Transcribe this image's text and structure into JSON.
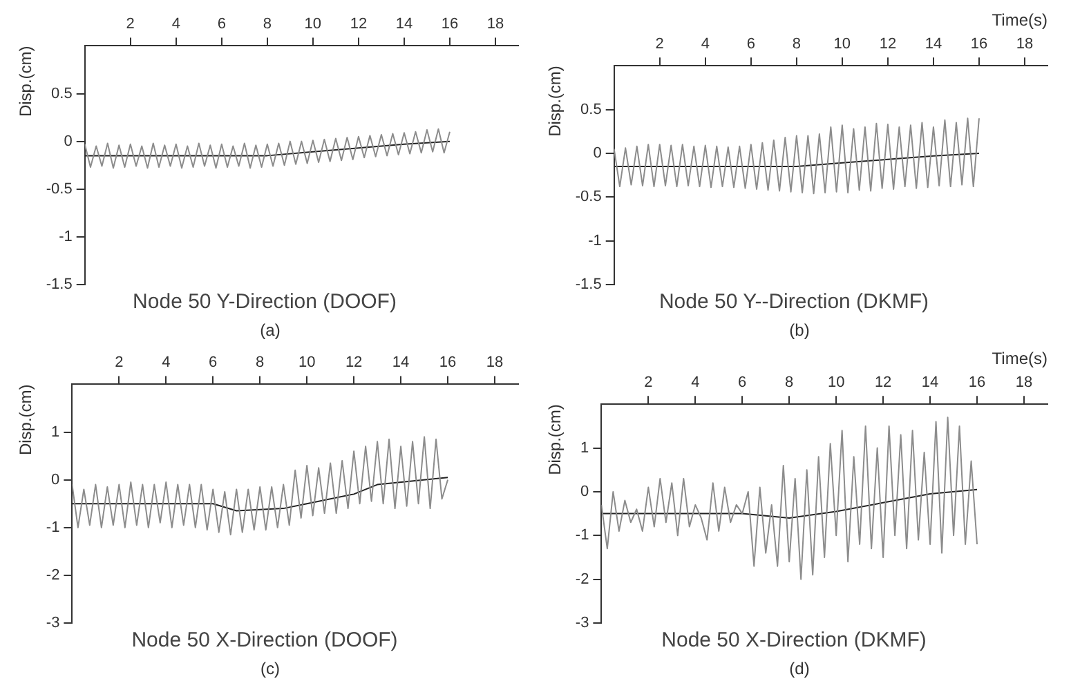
{
  "chart_data": [
    {
      "type": "line",
      "title": "Node 50 Y-Direction (DOOF)",
      "ylabel": "Disp.(cm)",
      "annotations": [
        "(a)"
      ],
      "xlim": [
        0,
        19
      ],
      "xticks": [
        2,
        4,
        6,
        8,
        10,
        12,
        14,
        16,
        18
      ],
      "ylim": [
        -1.5,
        1
      ],
      "yticks": [
        0.5,
        0,
        -0.5,
        -1,
        -1.5
      ],
      "grid": false,
      "marker": "none",
      "series": [
        {
          "color": "#8c8c8c",
          "x": [
            0,
            0.25,
            0.5,
            0.75,
            1,
            1.25,
            1.5,
            1.75,
            2,
            2.25,
            2.5,
            2.75,
            3,
            3.25,
            3.5,
            3.75,
            4,
            4.25,
            4.5,
            4.75,
            5,
            5.25,
            5.5,
            5.75,
            6,
            6.25,
            6.5,
            6.75,
            7,
            7.25,
            7.5,
            7.75,
            8,
            8.25,
            8.5,
            8.75,
            9,
            9.25,
            9.5,
            9.75,
            10,
            10.25,
            10.5,
            10.75,
            11,
            11.25,
            11.5,
            11.75,
            12,
            12.25,
            12.5,
            12.75,
            13,
            13.25,
            13.5,
            13.75,
            14,
            14.25,
            14.5,
            14.75,
            15,
            15.25,
            15.5,
            15.75,
            16
          ],
          "values": [
            -0.03,
            -0.27,
            -0.05,
            -0.26,
            -0.02,
            -0.28,
            -0.04,
            -0.27,
            -0.03,
            -0.26,
            -0.05,
            -0.28,
            -0.02,
            -0.27,
            -0.04,
            -0.26,
            -0.03,
            -0.28,
            -0.05,
            -0.27,
            -0.02,
            -0.26,
            -0.04,
            -0.28,
            -0.03,
            -0.27,
            -0.05,
            -0.26,
            -0.02,
            -0.28,
            -0.04,
            -0.27,
            -0.03,
            -0.26,
            -0.02,
            -0.25,
            0.0,
            -0.24,
            0.0,
            -0.23,
            0.01,
            -0.22,
            0.02,
            -0.21,
            0.03,
            -0.2,
            0.04,
            -0.19,
            0.05,
            -0.17,
            0.06,
            -0.16,
            0.07,
            -0.15,
            0.08,
            -0.14,
            0.09,
            -0.13,
            0.1,
            -0.12,
            0.12,
            -0.11,
            0.13,
            -0.12,
            0.1
          ]
        },
        {
          "color": "#222222",
          "x": [
            0,
            8,
            10,
            12,
            14,
            16
          ],
          "values": [
            -0.15,
            -0.15,
            -0.11,
            -0.07,
            -0.03,
            0
          ]
        }
      ]
    },
    {
      "type": "line",
      "title": "Node 50 Y--Direction (DKMF)",
      "xlabel": "Time(s)",
      "ylabel": "Disp.(cm)",
      "annotations": [
        "(b)"
      ],
      "xlim": [
        0,
        19
      ],
      "xticks": [
        2,
        4,
        6,
        8,
        10,
        12,
        14,
        16,
        18
      ],
      "ylim": [
        -1.5,
        1
      ],
      "yticks": [
        0.5,
        0,
        -0.5,
        -1,
        -1.5
      ],
      "grid": false,
      "marker": "none",
      "series": [
        {
          "color": "#8c8c8c",
          "x": [
            0,
            0.25,
            0.5,
            0.75,
            1,
            1.25,
            1.5,
            1.75,
            2,
            2.25,
            2.5,
            2.75,
            3,
            3.25,
            3.5,
            3.75,
            4,
            4.25,
            4.5,
            4.75,
            5,
            5.25,
            5.5,
            5.75,
            6,
            6.25,
            6.5,
            6.75,
            7,
            7.25,
            7.5,
            7.75,
            8,
            8.25,
            8.5,
            8.75,
            9,
            9.25,
            9.5,
            9.75,
            10,
            10.25,
            10.5,
            10.75,
            11,
            11.25,
            11.5,
            11.75,
            12,
            12.25,
            12.5,
            12.75,
            13,
            13.25,
            13.5,
            13.75,
            14,
            14.25,
            14.5,
            14.75,
            15,
            15.25,
            15.5,
            15.75,
            16
          ],
          "values": [
            0.05,
            -0.38,
            0.06,
            -0.36,
            0.08,
            -0.37,
            0.1,
            -0.38,
            0.1,
            -0.37,
            0.09,
            -0.38,
            0.1,
            -0.37,
            0.08,
            -0.38,
            0.09,
            -0.39,
            0.08,
            -0.38,
            0.07,
            -0.39,
            0.08,
            -0.4,
            0.1,
            -0.41,
            0.12,
            -0.42,
            0.15,
            -0.43,
            0.18,
            -0.44,
            0.2,
            -0.45,
            0.2,
            -0.46,
            0.22,
            -0.45,
            0.3,
            -0.44,
            0.32,
            -0.45,
            0.28,
            -0.42,
            0.3,
            -0.43,
            0.34,
            -0.4,
            0.33,
            -0.41,
            0.3,
            -0.38,
            0.32,
            -0.4,
            0.35,
            -0.39,
            0.3,
            -0.37,
            0.38,
            -0.38,
            0.35,
            -0.36,
            0.4,
            -0.38,
            0.4
          ]
        },
        {
          "color": "#222222",
          "x": [
            0,
            8,
            10,
            12,
            14,
            16
          ],
          "values": [
            -0.15,
            -0.15,
            -0.11,
            -0.07,
            -0.03,
            0
          ]
        }
      ]
    },
    {
      "type": "line",
      "title": "Node 50 X-Direction (DOOF)",
      "ylabel": "Disp.(cm)",
      "annotations": [
        "(c)"
      ],
      "xlim": [
        0,
        19
      ],
      "xticks": [
        2,
        4,
        6,
        8,
        10,
        12,
        14,
        16,
        18
      ],
      "ylim": [
        -3,
        2
      ],
      "yticks": [
        1,
        0,
        -1,
        -2,
        -3
      ],
      "grid": false,
      "marker": "none",
      "series": [
        {
          "color": "#8c8c8c",
          "x": [
            0,
            0.25,
            0.5,
            0.75,
            1,
            1.25,
            1.5,
            1.75,
            2,
            2.25,
            2.5,
            2.75,
            3,
            3.25,
            3.5,
            3.75,
            4,
            4.25,
            4.5,
            4.75,
            5,
            5.25,
            5.5,
            5.75,
            6,
            6.25,
            6.5,
            6.75,
            7,
            7.25,
            7.5,
            7.75,
            8,
            8.25,
            8.5,
            8.75,
            9,
            9.25,
            9.5,
            9.75,
            10,
            10.25,
            10.5,
            10.75,
            11,
            11.25,
            11.5,
            11.75,
            12,
            12.25,
            12.5,
            12.75,
            13,
            13.25,
            13.5,
            13.75,
            14,
            14.25,
            14.5,
            14.75,
            15,
            15.25,
            15.5,
            15.75,
            16
          ],
          "values": [
            -0.1,
            -1.0,
            -0.2,
            -0.95,
            -0.1,
            -1.0,
            -0.15,
            -0.95,
            -0.1,
            -1.0,
            -0.05,
            -0.95,
            -0.1,
            -1.0,
            -0.1,
            -0.9,
            -0.05,
            -1.0,
            -0.1,
            -0.95,
            -0.1,
            -1.0,
            -0.1,
            -1.05,
            -0.2,
            -1.1,
            -0.25,
            -1.15,
            -0.2,
            -1.1,
            -0.2,
            -1.05,
            -0.15,
            -1.05,
            -0.15,
            -1.0,
            -0.1,
            -0.95,
            0.2,
            -0.8,
            0.3,
            -0.75,
            0.25,
            -0.7,
            0.35,
            -0.7,
            0.4,
            -0.6,
            0.6,
            -0.5,
            0.7,
            -0.45,
            0.8,
            -0.5,
            0.85,
            -0.6,
            0.7,
            -0.55,
            0.8,
            -0.5,
            0.9,
            -0.6,
            0.85,
            -0.4,
            0.0
          ]
        },
        {
          "color": "#222222",
          "x": [
            0,
            6,
            7,
            9,
            10,
            12,
            13,
            16
          ],
          "values": [
            -0.5,
            -0.5,
            -0.65,
            -0.6,
            -0.5,
            -0.3,
            -0.1,
            0.05
          ]
        }
      ]
    },
    {
      "type": "line",
      "title": "Node 50 X-Direction (DKMF)",
      "xlabel": "Time(s)",
      "ylabel": "Disp.(cm)",
      "annotations": [
        "(d)"
      ],
      "xlim": [
        0,
        19
      ],
      "xticks": [
        2,
        4,
        6,
        8,
        10,
        12,
        14,
        16,
        18
      ],
      "ylim": [
        -3,
        2
      ],
      "yticks": [
        1,
        0,
        -1,
        -2,
        -3
      ],
      "grid": false,
      "marker": "none",
      "series": [
        {
          "color": "#8c8c8c",
          "x": [
            0,
            0.25,
            0.5,
            0.75,
            1,
            1.25,
            1.5,
            1.75,
            2,
            2.25,
            2.5,
            2.75,
            3,
            3.25,
            3.5,
            3.75,
            4,
            4.25,
            4.5,
            4.75,
            5,
            5.25,
            5.5,
            5.75,
            6,
            6.25,
            6.5,
            6.75,
            7,
            7.25,
            7.5,
            7.75,
            8,
            8.25,
            8.5,
            8.75,
            9,
            9.25,
            9.5,
            9.75,
            10,
            10.25,
            10.5,
            10.75,
            11,
            11.25,
            11.5,
            11.75,
            12,
            12.25,
            12.5,
            12.75,
            13,
            13.25,
            13.5,
            13.75,
            14,
            14.25,
            14.5,
            14.75,
            15,
            15.25,
            15.5,
            15.75,
            16
          ],
          "values": [
            -0.3,
            -1.3,
            0.0,
            -0.9,
            -0.2,
            -0.7,
            -0.4,
            -0.9,
            0.1,
            -0.8,
            0.3,
            -0.7,
            0.2,
            -1.0,
            0.3,
            -0.8,
            -0.3,
            -0.6,
            -1.1,
            0.2,
            -0.9,
            0.1,
            -0.7,
            -0.3,
            -0.5,
            0.0,
            -1.7,
            0.1,
            -1.4,
            -0.3,
            -1.7,
            0.6,
            -1.6,
            0.3,
            -2.0,
            0.5,
            -1.9,
            0.8,
            -1.5,
            1.1,
            -1.0,
            1.4,
            -1.6,
            0.8,
            -1.2,
            1.5,
            -1.3,
            1.0,
            -1.5,
            1.5,
            -1.0,
            1.3,
            -1.3,
            1.4,
            -1.1,
            0.9,
            -1.2,
            1.6,
            -1.4,
            1.7,
            -1.0,
            1.5,
            -1.2,
            0.7,
            -1.2
          ]
        },
        {
          "color": "#222222",
          "x": [
            0,
            6,
            8,
            10,
            12,
            14,
            16
          ],
          "values": [
            -0.5,
            -0.5,
            -0.6,
            -0.45,
            -0.25,
            -0.05,
            0.05
          ]
        }
      ]
    }
  ]
}
